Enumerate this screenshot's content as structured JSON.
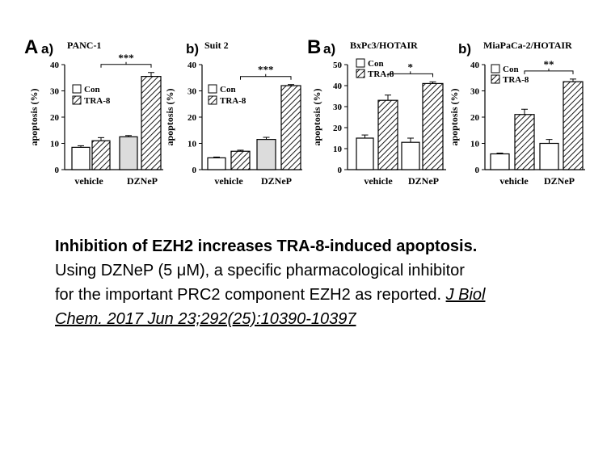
{
  "panel_groups": {
    "A": "A",
    "B": "B"
  },
  "chart_data": [
    {
      "type": "bar",
      "subpanel": "a)",
      "title": "PANC-1",
      "categories": [
        "vehicle",
        "DZNeP"
      ],
      "series": [
        {
          "name": "Con",
          "values": [
            8.5,
            12.5
          ],
          "errors": [
            0.6,
            0.5
          ],
          "pattern": "open"
        },
        {
          "name": "TRA-8",
          "values": [
            11,
            35.5
          ],
          "errors": [
            1.2,
            1.5
          ],
          "pattern": "hatched"
        }
      ],
      "ylabel": "apoptosis (%)",
      "ylim": [
        0,
        40
      ],
      "yticks": [
        0,
        10,
        20,
        30,
        40
      ],
      "significance": "***",
      "legend": "left"
    },
    {
      "type": "bar",
      "subpanel": "b)",
      "title": "Suit 2",
      "categories": [
        "vehicle",
        "DZNeP"
      ],
      "series": [
        {
          "name": "Con",
          "values": [
            4.5,
            11.5
          ],
          "errors": [
            0.3,
            0.8
          ],
          "pattern": "open"
        },
        {
          "name": "TRA-8",
          "values": [
            7,
            32
          ],
          "errors": [
            0.4,
            0.4
          ],
          "pattern": "hatched"
        }
      ],
      "ylabel": "apoptosis (%)",
      "ylim": [
        0,
        40
      ],
      "yticks": [
        0,
        10,
        20,
        30,
        40
      ],
      "significance": "***",
      "legend": "left"
    },
    {
      "type": "bar",
      "subpanel": "a)",
      "title": "BxPc3/HOTAIR",
      "categories": [
        "vehicle",
        "DZNeP"
      ],
      "series": [
        {
          "name": "Con",
          "values": [
            15,
            13
          ],
          "errors": [
            1.5,
            2.0
          ],
          "pattern": "open"
        },
        {
          "name": "TRA-8",
          "values": [
            33,
            41
          ],
          "errors": [
            2.5,
            0.8
          ],
          "pattern": "hatched"
        }
      ],
      "ylabel": "apoptosis (%)",
      "ylim": [
        0,
        50
      ],
      "yticks": [
        0,
        10,
        20,
        30,
        40,
        50
      ],
      "significance": "*",
      "legend": "top-left"
    },
    {
      "type": "bar",
      "subpanel": "b)",
      "title": "MiaPaCa-2/HOTAIR",
      "categories": [
        "vehicle",
        "DZNeP"
      ],
      "series": [
        {
          "name": "Con",
          "values": [
            6,
            10
          ],
          "errors": [
            0.3,
            1.5
          ],
          "pattern": "open"
        },
        {
          "name": "TRA-8",
          "values": [
            21,
            33.5
          ],
          "errors": [
            2.0,
            1.0
          ],
          "pattern": "hatched"
        }
      ],
      "ylabel": "apoptosis (%)",
      "ylim": [
        0,
        40
      ],
      "yticks": [
        0,
        10,
        20,
        30,
        40
      ],
      "significance": "**",
      "legend": "top-left"
    }
  ],
  "caption": {
    "title": "Inhibition of EZH2 increases TRA-8-induced apoptosis.",
    "line1": "Using DZNeP (5 μM), a specific pharmacological inhibitor",
    "line2": "for the important PRC2 component EZH2 as reported. ",
    "citation_part1": "J Biol",
    "citation_part2": "Chem. 2017 Jun 23;292(25):10390-10397"
  }
}
